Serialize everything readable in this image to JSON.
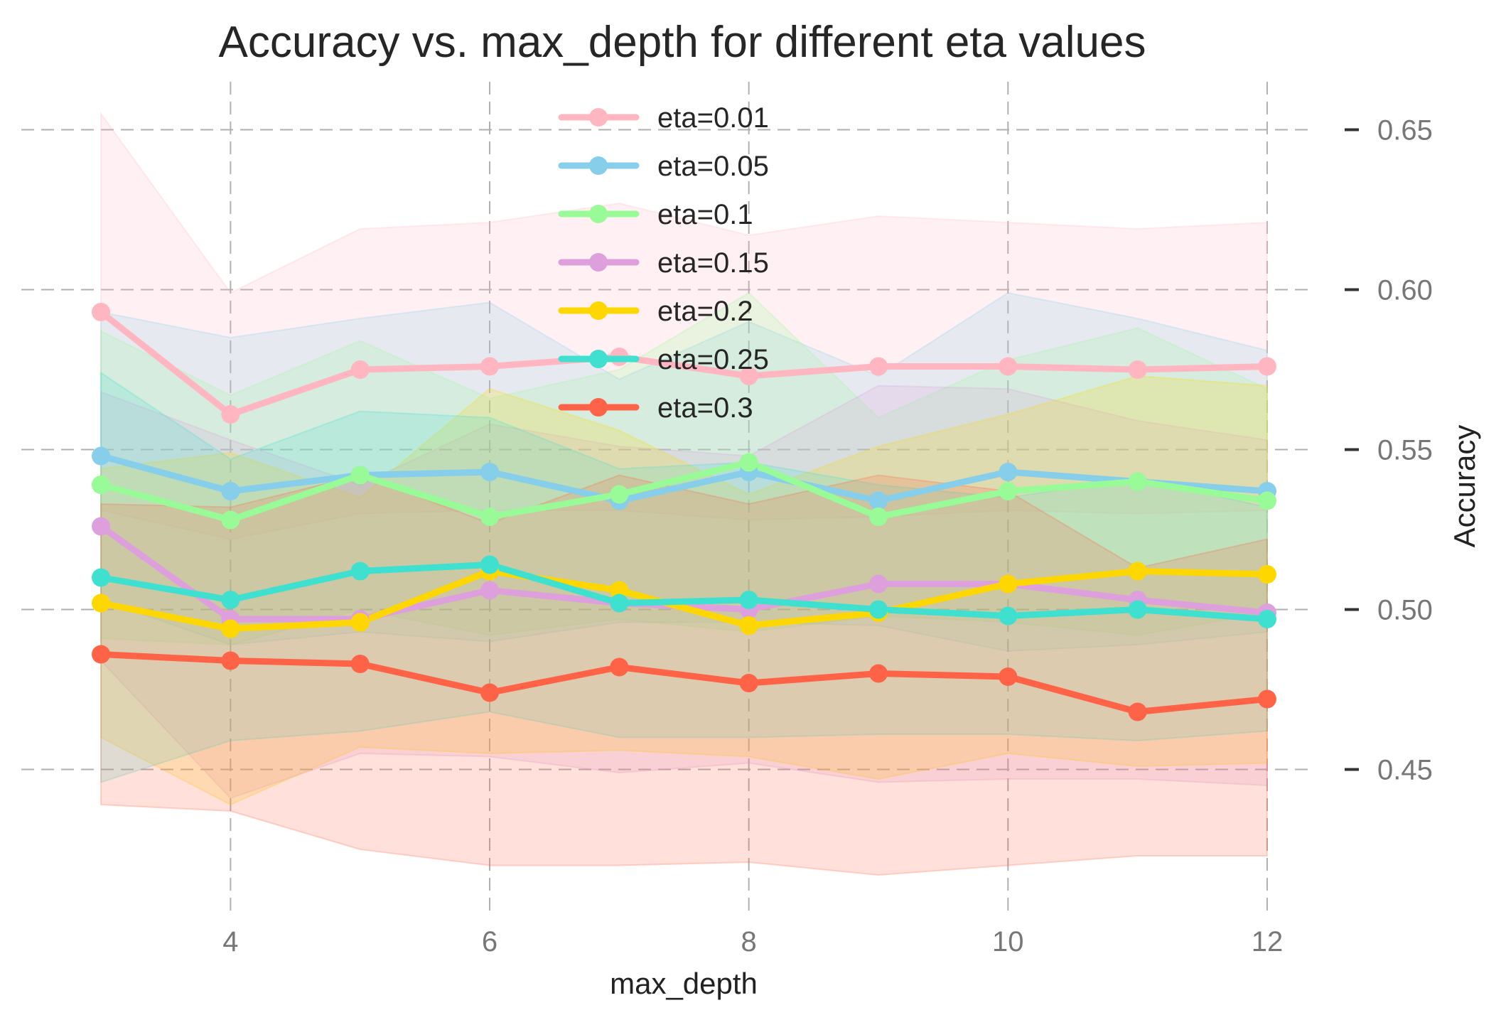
{
  "chart_data": {
    "type": "line",
    "title": "Accuracy vs. max_depth for different eta values",
    "xlabel": "max_depth",
    "ylabel": "Accuracy",
    "x": [
      3,
      4,
      5,
      6,
      7,
      8,
      9,
      10,
      11,
      12
    ],
    "xlim": [
      2.55,
      12.45
    ],
    "ylim": [
      0.405,
      0.665
    ],
    "xticks": [
      4,
      6,
      8,
      10,
      12
    ],
    "yticks": [
      0.45,
      0.5,
      0.55,
      0.6,
      0.65
    ],
    "xtick_labels": [
      "4",
      "6",
      "8",
      "10",
      "12"
    ],
    "ytick_labels": [
      "0.45",
      "0.50",
      "0.55",
      "0.60",
      "0.65"
    ],
    "y_axis_side": "right",
    "grid": true,
    "legend_position": "upper-center",
    "series": [
      {
        "name": "eta=0.01",
        "color": "#FFB6C1",
        "values": [
          0.593,
          0.561,
          0.575,
          0.576,
          0.579,
          0.573,
          0.576,
          0.576,
          0.575,
          0.576
        ],
        "upper": [
          0.655,
          0.599,
          0.619,
          0.621,
          0.627,
          0.617,
          0.623,
          0.621,
          0.619,
          0.621
        ],
        "lower": [
          0.531,
          0.522,
          0.53,
          0.531,
          0.531,
          0.528,
          0.529,
          0.531,
          0.53,
          0.531
        ]
      },
      {
        "name": "eta=0.05",
        "color": "#87CEEB",
        "values": [
          0.548,
          0.537,
          0.542,
          0.543,
          0.534,
          0.543,
          0.534,
          0.543,
          0.54,
          0.537
        ],
        "upper": [
          0.593,
          0.585,
          0.591,
          0.596,
          0.572,
          0.59,
          0.573,
          0.599,
          0.591,
          0.581
        ],
        "lower": [
          0.503,
          0.489,
          0.493,
          0.49,
          0.496,
          0.496,
          0.495,
          0.487,
          0.489,
          0.493
        ]
      },
      {
        "name": "eta=0.1",
        "color": "#98FB98",
        "values": [
          0.539,
          0.528,
          0.542,
          0.529,
          0.536,
          0.546,
          0.529,
          0.537,
          0.54,
          0.534
        ],
        "upper": [
          0.587,
          0.567,
          0.584,
          0.566,
          0.575,
          0.599,
          0.56,
          0.578,
          0.588,
          0.569
        ],
        "lower": [
          0.491,
          0.489,
          0.5,
          0.492,
          0.497,
          0.493,
          0.498,
          0.496,
          0.492,
          0.499
        ]
      },
      {
        "name": "eta=0.15",
        "color": "#DDA0DD",
        "values": [
          0.526,
          0.497,
          0.497,
          0.506,
          0.502,
          0.5,
          0.508,
          0.508,
          0.503,
          0.499
        ],
        "upper": [
          0.568,
          0.553,
          0.539,
          0.558,
          0.551,
          0.548,
          0.57,
          0.569,
          0.559,
          0.553
        ],
        "lower": [
          0.484,
          0.441,
          0.455,
          0.454,
          0.449,
          0.452,
          0.446,
          0.447,
          0.447,
          0.445
        ]
      },
      {
        "name": "eta=0.2",
        "color": "#FFD700",
        "values": [
          0.502,
          0.494,
          0.496,
          0.512,
          0.506,
          0.495,
          0.499,
          0.508,
          0.512,
          0.511
        ],
        "upper": [
          0.544,
          0.549,
          0.535,
          0.569,
          0.556,
          0.536,
          0.551,
          0.561,
          0.573,
          0.57
        ],
        "lower": [
          0.46,
          0.439,
          0.457,
          0.455,
          0.456,
          0.454,
          0.447,
          0.455,
          0.451,
          0.452
        ]
      },
      {
        "name": "eta=0.25",
        "color": "#40E0D0",
        "values": [
          0.51,
          0.503,
          0.512,
          0.514,
          0.502,
          0.503,
          0.5,
          0.498,
          0.5,
          0.497
        ],
        "upper": [
          0.574,
          0.547,
          0.562,
          0.56,
          0.544,
          0.546,
          0.539,
          0.535,
          0.541,
          0.532
        ],
        "lower": [
          0.446,
          0.459,
          0.462,
          0.468,
          0.46,
          0.46,
          0.461,
          0.461,
          0.459,
          0.462
        ]
      },
      {
        "name": "eta=0.3",
        "color": "#FF6347",
        "values": [
          0.486,
          0.484,
          0.483,
          0.474,
          0.482,
          0.477,
          0.48,
          0.479,
          0.468,
          0.472
        ],
        "upper": [
          0.533,
          0.532,
          0.542,
          0.527,
          0.542,
          0.533,
          0.542,
          0.537,
          0.513,
          0.522
        ],
        "lower": [
          0.439,
          0.437,
          0.425,
          0.42,
          0.42,
          0.421,
          0.417,
          0.42,
          0.423,
          0.423
        ]
      }
    ]
  }
}
